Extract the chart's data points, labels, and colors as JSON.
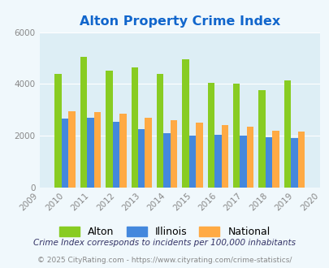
{
  "title": "Alton Property Crime Index",
  "all_years": [
    2009,
    2010,
    2011,
    2012,
    2013,
    2014,
    2015,
    2016,
    2017,
    2018,
    2019,
    2020
  ],
  "data_years": [
    2010,
    2011,
    2012,
    2013,
    2014,
    2015,
    2016,
    2017,
    2018,
    2019
  ],
  "alton": [
    4400,
    5050,
    4500,
    4650,
    4400,
    4950,
    4050,
    4000,
    3750,
    4150
  ],
  "illinois": [
    2650,
    2700,
    2550,
    2250,
    2100,
    2000,
    2050,
    2000,
    1950,
    1900
  ],
  "national": [
    2950,
    2900,
    2850,
    2700,
    2600,
    2500,
    2400,
    2350,
    2200,
    2150
  ],
  "color_alton": "#88cc22",
  "color_illinois": "#4488dd",
  "color_national": "#ffaa44",
  "title_color": "#1166cc",
  "background_color": "#f0f8fc",
  "plot_bg_color": "#ddeef5",
  "ylim": [
    0,
    6000
  ],
  "yticks": [
    0,
    2000,
    4000,
    6000
  ],
  "bar_width": 0.27,
  "footnote1": "Crime Index corresponds to incidents per 100,000 inhabitants",
  "footnote2": "© 2025 CityRating.com - https://www.cityrating.com/crime-statistics/",
  "legend_labels": [
    "Alton",
    "Illinois",
    "National"
  ],
  "footnote1_color": "#333366",
  "footnote2_color": "#888888",
  "tick_color": "#888888"
}
